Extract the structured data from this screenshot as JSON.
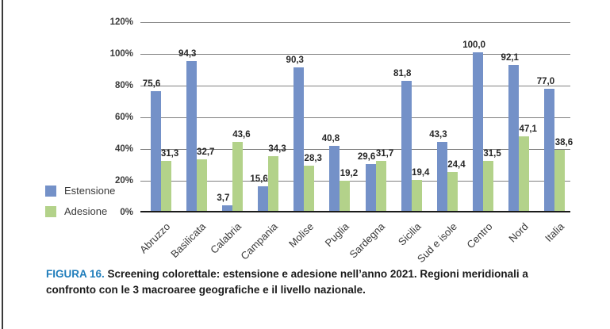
{
  "figure": {
    "caption_label": "FIGURA 16.",
    "caption_text": " Screening colorettale: estensione e adesione nell’anno 2021. Regioni meridionali a confronto con le 3 macroaree geografiche e il livello nazionale."
  },
  "legend": {
    "items": [
      {
        "label": "Estensione",
        "color": "#7491C8"
      },
      {
        "label": "Adesione",
        "color": "#B3D28A"
      }
    ]
  },
  "chart_data": {
    "type": "bar",
    "title": "",
    "xlabel": "",
    "ylabel": "",
    "categories": [
      "Abruzzo",
      "Basilicata",
      "Calabria",
      "Campania",
      "Molise",
      "Puglia",
      "Sardegna",
      "Sicilia",
      "Sud e isole",
      "Centro",
      "Nord",
      "Italia"
    ],
    "series": [
      {
        "name": "Estensione",
        "color": "#7491C8",
        "values": [
          75.6,
          94.3,
          3.7,
          15.6,
          90.3,
          40.8,
          29.6,
          81.8,
          43.3,
          100.0,
          92.1,
          77.0
        ],
        "labels": [
          "75,6",
          "94,3",
          "3,7",
          "15,6",
          "90,3",
          "40,8",
          "29,6",
          "81,8",
          "43,3",
          "100,0",
          "92,1",
          "77,0"
        ]
      },
      {
        "name": "Adesione",
        "color": "#B3D28A",
        "values": [
          31.3,
          32.7,
          43.6,
          34.3,
          28.3,
          19.2,
          31.7,
          19.4,
          24.4,
          31.5,
          47.1,
          38.6
        ],
        "labels": [
          "31,3",
          "32,7",
          "43,6",
          "34,3",
          "28,3",
          "19,2",
          "31,7",
          "19,4",
          "24,4",
          "31,5",
          "47,1",
          "38,6"
        ]
      }
    ],
    "ylim": [
      0,
      120
    ],
    "ytick_step": 20,
    "ytick_labels": [
      "0%",
      "20%",
      "40%",
      "60%",
      "80%",
      "100%",
      "120%"
    ],
    "grid": true,
    "legend_position": "left",
    "colors": {
      "gridline": "#808080",
      "axis": "#1a1a1a",
      "value_text": "#262626"
    }
  }
}
